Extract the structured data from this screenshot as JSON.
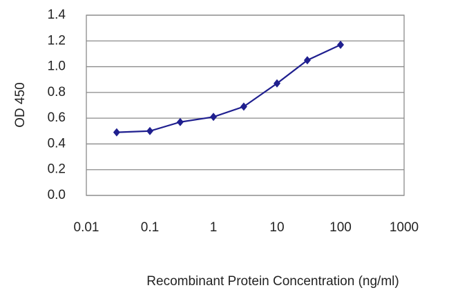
{
  "chart_data": {
    "type": "line",
    "x_label": "Recombinant Protein Concentration (ng/ml)",
    "y_label": "OD 450",
    "x": [
      0.03,
      0.1,
      0.3,
      1,
      3,
      10,
      30,
      100
    ],
    "values": [
      0.49,
      0.5,
      0.57,
      0.61,
      0.69,
      0.87,
      1.05,
      1.17
    ],
    "color": "#1f1f8f",
    "xscale": "log",
    "xlim": [
      0.01,
      1000
    ],
    "xticks": [
      0.01,
      0.1,
      1,
      10,
      100,
      1000
    ],
    "ylim": [
      0,
      1.4
    ],
    "yticks": [
      {
        "value": 0,
        "label": "0.0"
      },
      0.2,
      0.4,
      0.6,
      0.8,
      {
        "value": 1,
        "label": "1.0"
      },
      1.2,
      1.4
    ],
    "grid": true
  }
}
